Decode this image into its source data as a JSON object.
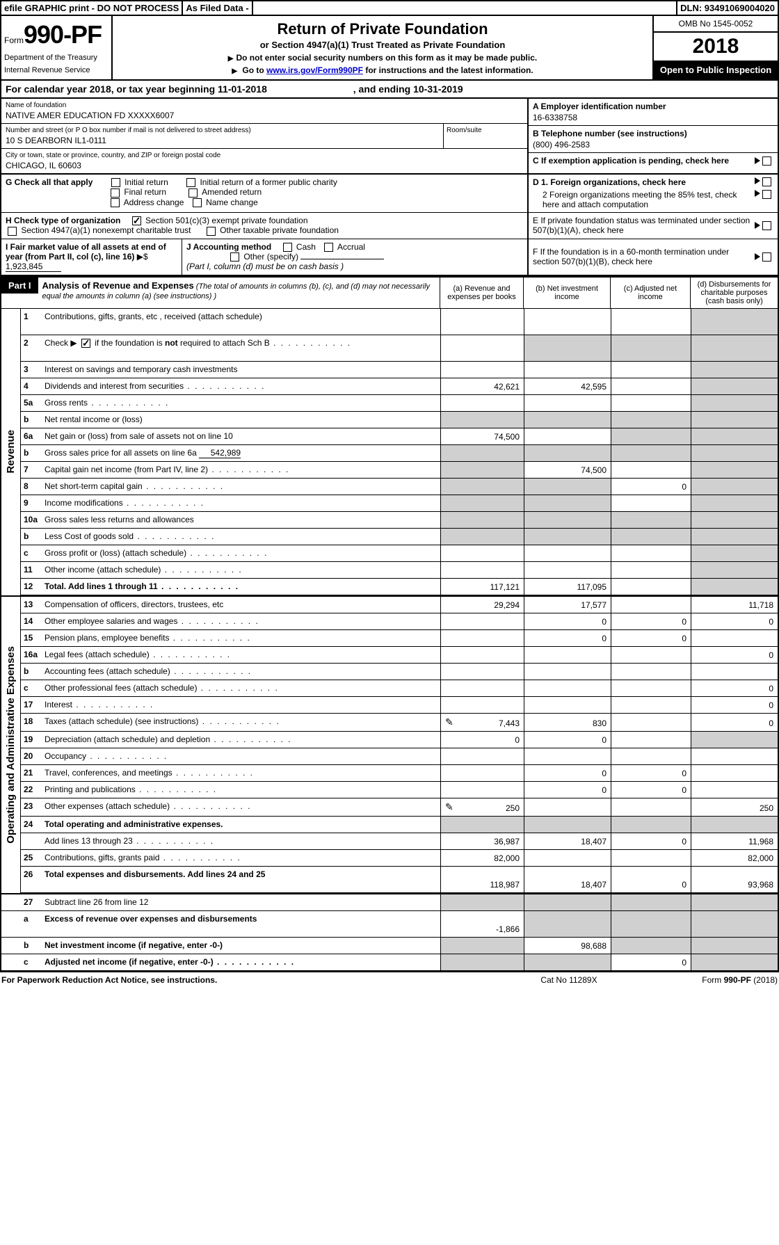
{
  "topbar": {
    "efile": "efile GRAPHIC print - DO NOT PROCESS",
    "asfiled": "As Filed Data -",
    "dln": "DLN: 93491069004020"
  },
  "header": {
    "form_prefix": "Form",
    "form_number": "990-PF",
    "dept1": "Department of the Treasury",
    "dept2": "Internal Revenue Service",
    "title": "Return of Private Foundation",
    "subtitle": "or Section 4947(a)(1) Trust Treated as Private Foundation",
    "instr1": "Do not enter social security numbers on this form as it may be made public.",
    "instr2_pre": "Go to ",
    "instr2_link": "www.irs.gov/Form990PF",
    "instr2_post": " for instructions and the latest information.",
    "omb": "OMB No 1545-0052",
    "year": "2018",
    "open": "Open to Public Inspection"
  },
  "calyear": {
    "pre": "For calendar year 2018, or tax year beginning ",
    "begin": "11-01-2018",
    "mid": " , and ending ",
    "end": "10-31-2019"
  },
  "entity": {
    "name_label": "Name of foundation",
    "name": "NATIVE AMER EDUCATION FD XXXXX6007",
    "addr_label": "Number and street (or P O  box number if mail is not delivered to street address)",
    "addr": "10 S DEARBORN IL1-0111",
    "room_label": "Room/suite",
    "city_label": "City or town, state or province, country, and ZIP or foreign postal code",
    "city": "CHICAGO, IL  60603",
    "a_label": "A Employer identification number",
    "a_val": "16-6338758",
    "b_label": "B Telephone number (see instructions)",
    "b_val": "(800) 496-2583",
    "c_label": "C If exemption application is pending, check here"
  },
  "secG": {
    "label": "G Check all that apply",
    "o1": "Initial return",
    "o2": "Initial return of a former public charity",
    "o3": "Final return",
    "o4": "Amended return",
    "o5": "Address change",
    "o6": "Name change"
  },
  "secH": {
    "label": "H Check type of organization",
    "o1": "Section 501(c)(3) exempt private foundation",
    "o2": "Section 4947(a)(1) nonexempt charitable trust",
    "o3": "Other taxable private foundation"
  },
  "secI": {
    "label": "I Fair market value of all assets at end of year (from Part II, col  (c), line 16)",
    "val_pre": "▶$ ",
    "val": "1,923,845"
  },
  "secJ": {
    "label": "J Accounting method",
    "cash": "Cash",
    "accrual": "Accrual",
    "other": "Other (specify)",
    "note": "(Part I, column (d) must be on cash basis )"
  },
  "secD": {
    "d1": "D 1. Foreign organizations, check here",
    "d2": "2 Foreign organizations meeting the 85% test, check here and attach computation"
  },
  "secE": "E  If private foundation status was terminated under section 507(b)(1)(A), check here",
  "secF": "F  If the foundation is in a 60-month termination under section 507(b)(1)(B), check here",
  "part1": {
    "tag": "Part I",
    "title": "Analysis of Revenue and Expenses",
    "desc": " (The total of amounts in columns (b), (c), and (d) may not necessarily equal the amounts in column (a) (see instructions) )",
    "col_a": "(a)   Revenue and expenses per books",
    "col_b": "(b)  Net investment income",
    "col_c": "(c)  Adjusted net income",
    "col_d": "(d)  Disbursements for charitable purposes (cash basis only)"
  },
  "sides": {
    "rev": "Revenue",
    "exp": "Operating and Administrative Expenses"
  },
  "lines": {
    "l1": {
      "n": "1",
      "d": "Contributions, gifts, grants, etc , received (attach schedule)"
    },
    "l2": {
      "n": "2",
      "d_pre": "Check ▶ ",
      "d_post": " if the foundation is ",
      "d_not": "not",
      "d_end": " required to attach Sch  B"
    },
    "l3": {
      "n": "3",
      "d": "Interest on savings and temporary cash investments"
    },
    "l4": {
      "n": "4",
      "d": "Dividends and interest from securities",
      "a": "42,621",
      "b": "42,595"
    },
    "l5a": {
      "n": "5a",
      "d": "Gross rents"
    },
    "l5b": {
      "n": "b",
      "d": "Net rental income or (loss)"
    },
    "l6a": {
      "n": "6a",
      "d": "Net gain or (loss) from sale of assets not on line 10",
      "a": "74,500"
    },
    "l6b": {
      "n": "b",
      "d": "Gross sales price for all assets on line 6a",
      "inline": "542,989"
    },
    "l7": {
      "n": "7",
      "d": "Capital gain net income (from Part IV, line 2)",
      "b": "74,500"
    },
    "l8": {
      "n": "8",
      "d": "Net short-term capital gain",
      "c": "0"
    },
    "l9": {
      "n": "9",
      "d": "Income modifications"
    },
    "l10a": {
      "n": "10a",
      "d": "Gross sales less returns and allowances"
    },
    "l10b": {
      "n": "b",
      "d": "Less  Cost of goods sold"
    },
    "l10c": {
      "n": "c",
      "d": "Gross profit or (loss) (attach schedule)"
    },
    "l11": {
      "n": "11",
      "d": "Other income (attach schedule)"
    },
    "l12": {
      "n": "12",
      "d": "Total. Add lines 1 through 11",
      "a": "117,121",
      "b": "117,095"
    },
    "l13": {
      "n": "13",
      "d": "Compensation of officers, directors, trustees, etc",
      "a": "29,294",
      "b": "17,577",
      "d4": "11,718"
    },
    "l14": {
      "n": "14",
      "d": "Other employee salaries and wages",
      "b": "0",
      "c": "0",
      "d4": "0"
    },
    "l15": {
      "n": "15",
      "d": "Pension plans, employee benefits",
      "b": "0",
      "c": "0"
    },
    "l16a": {
      "n": "16a",
      "d": "Legal fees (attach schedule)",
      "d4": "0"
    },
    "l16b": {
      "n": "b",
      "d": "Accounting fees (attach schedule)"
    },
    "l16c": {
      "n": "c",
      "d": "Other professional fees (attach schedule)",
      "d4": "0"
    },
    "l17": {
      "n": "17",
      "d": "Interest",
      "d4": "0"
    },
    "l18": {
      "n": "18",
      "d": "Taxes (attach schedule) (see instructions)",
      "a": "7,443",
      "b": "830",
      "d4": "0",
      "icon": true
    },
    "l19": {
      "n": "19",
      "d": "Depreciation (attach schedule) and depletion",
      "a": "0",
      "b": "0"
    },
    "l20": {
      "n": "20",
      "d": "Occupancy"
    },
    "l21": {
      "n": "21",
      "d": "Travel, conferences, and meetings",
      "b": "0",
      "c": "0"
    },
    "l22": {
      "n": "22",
      "d": "Printing and publications",
      "b": "0",
      "c": "0"
    },
    "l23": {
      "n": "23",
      "d": "Other expenses (attach schedule)",
      "a": "250",
      "d4": "250",
      "icon": true
    },
    "l24": {
      "n": "24",
      "d": "Total operating and administrative expenses."
    },
    "l24b": {
      "n": "",
      "d": "Add lines 13 through 23",
      "a": "36,987",
      "b": "18,407",
      "c": "0",
      "d4": "11,968"
    },
    "l25": {
      "n": "25",
      "d": "Contributions, gifts, grants paid",
      "a": "82,000",
      "d4": "82,000"
    },
    "l26": {
      "n": "26",
      "d": "Total expenses and disbursements. Add lines 24 and 25",
      "a": "118,987",
      "b": "18,407",
      "c": "0",
      "d4": "93,968"
    },
    "l27": {
      "n": "27",
      "d": "Subtract line 26 from line 12"
    },
    "l27a": {
      "n": "a",
      "d": "Excess of revenue over expenses and disbursements",
      "a": "-1,866"
    },
    "l27b": {
      "n": "b",
      "d": "Net investment income (if negative, enter -0-)",
      "b": "98,688"
    },
    "l27c": {
      "n": "c",
      "d": "Adjusted net income (if negative, enter -0-)",
      "c": "0"
    }
  },
  "footer": {
    "left": "For Paperwork Reduction Act Notice, see instructions.",
    "mid": "Cat  No  11289X",
    "right_pre": "Form ",
    "right_form": "990-PF",
    "right_post": " (2018)"
  }
}
